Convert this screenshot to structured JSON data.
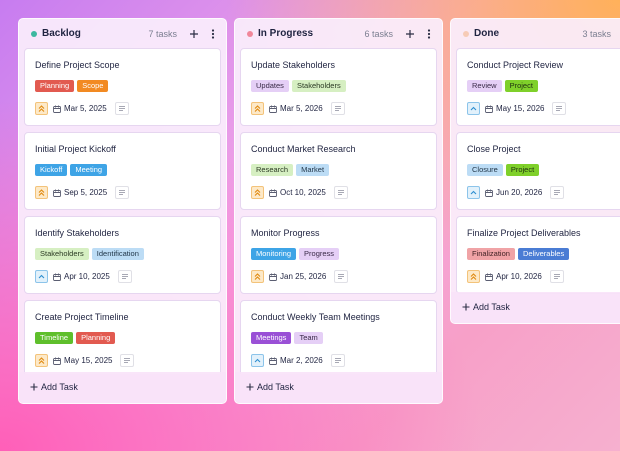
{
  "columns": [
    {
      "title": "Backlog",
      "dot": "#3cb8a0",
      "count": "7 tasks",
      "add_label": "Add Task",
      "cards": [
        {
          "title": "Define Project Scope",
          "priority": "high",
          "date": "Mar 5, 2025",
          "tags": [
            {
              "label": "Planning",
              "bg": "#e25a50",
              "fg": "#ffffff"
            },
            {
              "label": "Scope",
              "bg": "#f28a22",
              "fg": "#ffffff"
            }
          ]
        },
        {
          "title": "Initial Project Kickoff",
          "priority": "high",
          "date": "Sep 5, 2025",
          "tags": [
            {
              "label": "Kickoff",
              "bg": "#3ea4e6",
              "fg": "#ffffff"
            },
            {
              "label": "Meeting",
              "bg": "#3ea4e6",
              "fg": "#ffffff"
            }
          ]
        },
        {
          "title": "Identify Stakeholders",
          "priority": "medium",
          "date": "Apr 10, 2025",
          "tags": [
            {
              "label": "Stakeholders",
              "bg": "#d6efc2",
              "fg": "#2b3a24"
            },
            {
              "label": "Identification",
              "bg": "#bcdcf5",
              "fg": "#1f3446"
            }
          ]
        },
        {
          "title": "Create Project Timeline",
          "priority": "high",
          "date": "May 15, 2025",
          "tags": [
            {
              "label": "Timeline",
              "bg": "#5fbf2c",
              "fg": "#ffffff"
            },
            {
              "label": "Planning",
              "bg": "#e25a50",
              "fg": "#ffffff"
            }
          ]
        }
      ]
    },
    {
      "title": "In Progress",
      "dot": "#f0879a",
      "count": "6 tasks",
      "add_label": "Add Task",
      "cards": [
        {
          "title": "Update Stakeholders",
          "priority": "high",
          "date": "Mar 5, 2026",
          "tags": [
            {
              "label": "Updates",
              "bg": "#e5cff6",
              "fg": "#3a2a48"
            },
            {
              "label": "Stakeholders",
              "bg": "#d6efc2",
              "fg": "#2b3a24"
            }
          ]
        },
        {
          "title": "Conduct Market Research",
          "priority": "high",
          "date": "Oct 10, 2025",
          "tags": [
            {
              "label": "Research",
              "bg": "#d6efc2",
              "fg": "#2b3a24"
            },
            {
              "label": "Market",
              "bg": "#bcdcf5",
              "fg": "#1f3446"
            }
          ]
        },
        {
          "title": "Monitor Progress",
          "priority": "high",
          "date": "Jan 25, 2026",
          "tags": [
            {
              "label": "Monitoring",
              "bg": "#3ea4e6",
              "fg": "#ffffff"
            },
            {
              "label": "Progress",
              "bg": "#e5cff6",
              "fg": "#3a2a48"
            }
          ]
        },
        {
          "title": "Conduct Weekly Team Meetings",
          "priority": "medium",
          "date": "Mar 2, 2026",
          "tags": [
            {
              "label": "Meetings",
              "bg": "#9a50d6",
              "fg": "#ffffff"
            },
            {
              "label": "Team",
              "bg": "#e5cff6",
              "fg": "#3a2a48"
            }
          ]
        }
      ]
    },
    {
      "title": "Done",
      "dot": "#f6cbb6",
      "count": "3 tasks",
      "add_label": "Add Task",
      "cards": [
        {
          "title": "Conduct Project Review",
          "priority": "medium",
          "date": "May 15, 2026",
          "tags": [
            {
              "label": "Review",
              "bg": "#e5cff6",
              "fg": "#3a2a48"
            },
            {
              "label": "Project",
              "bg": "#7fd02a",
              "fg": "#1f3010"
            }
          ]
        },
        {
          "title": "Close Project",
          "priority": "medium",
          "date": "Jun 20, 2026",
          "tags": [
            {
              "label": "Closure",
              "bg": "#bcdcf5",
              "fg": "#1f3446"
            },
            {
              "label": "Project",
              "bg": "#7fd02a",
              "fg": "#1f3010"
            }
          ]
        },
        {
          "title": "Finalize Project Deliverables",
          "priority": "high",
          "date": "Apr 10, 2026",
          "tags": [
            {
              "label": "Finalization",
              "bg": "#f0a3a6",
              "fg": "#3e1f22"
            },
            {
              "label": "Deliverables",
              "bg": "#4a7cd4",
              "fg": "#ffffff"
            }
          ]
        }
      ]
    }
  ]
}
